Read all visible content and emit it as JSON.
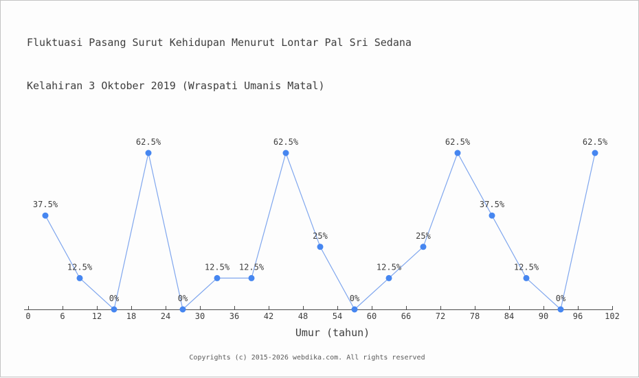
{
  "page": {
    "background": "#fdfdfd",
    "border_color": "#c3c3c3"
  },
  "chart_data": {
    "type": "line",
    "title": "Fluktuasi Pasang Surut Kehidupan Menurut Lontar Pal Sri Sedana",
    "subtitle": "Kelahiran 3 Oktober 2019 (Wraspati Umanis Matal)",
    "xlabel": "Umur (tahun)",
    "ylabel": "",
    "x": [
      3,
      9,
      15,
      21,
      27,
      33,
      39,
      45,
      51,
      57,
      63,
      69,
      75,
      81,
      87,
      93,
      99
    ],
    "values": [
      37.5,
      12.5,
      0,
      62.5,
      0,
      12.5,
      12.5,
      62.5,
      25,
      0,
      12.5,
      25,
      62.5,
      37.5,
      12.5,
      0,
      62.5
    ],
    "point_labels": [
      "37.5%",
      "12.5%",
      "0%",
      "62.5%",
      "0%",
      "12.5%",
      "12.5%",
      "62.5%",
      "25%",
      "0%",
      "12.5%",
      "25%",
      "62.5%",
      "37.5%",
      "12.5%",
      "0%",
      "62.5%"
    ],
    "x_ticks": [
      0,
      6,
      12,
      18,
      24,
      30,
      36,
      42,
      48,
      54,
      60,
      66,
      72,
      78,
      84,
      90,
      96,
      102
    ],
    "xlim": [
      0,
      102
    ],
    "y_axis_visible": false,
    "grid": false,
    "legend": "none",
    "line_color": "#7fa6ee",
    "marker_color": "#4686f0",
    "axis_color": "#4a4a4a",
    "text_color": "#3d3d3d"
  },
  "footer": {
    "copyright": "Copyrights (c) 2015-2026 webdika.com. All rights reserved"
  }
}
